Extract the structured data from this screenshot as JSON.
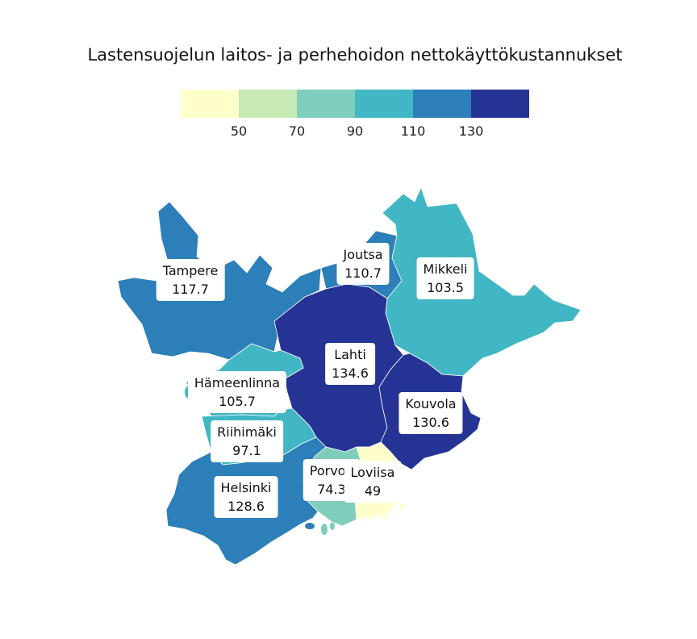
{
  "title": "Lastensuojelun laitos- ja perhehoidon nettokäyttökustannukset",
  "legend": {
    "colors": [
      "#ffffcc",
      "#c7e9b4",
      "#7fcdbb",
      "#41b6c4",
      "#2c7fb8",
      "#253494"
    ],
    "ticks": [
      "50",
      "70",
      "90",
      "110",
      "130"
    ]
  },
  "regions": [
    {
      "name": "Tampere",
      "value": "117.7",
      "color": "#2c7fb8"
    },
    {
      "name": "Joutsa",
      "value": "110.7",
      "color": "#2c7fb8"
    },
    {
      "name": "Mikkeli",
      "value": "103.5",
      "color": "#41b6c4"
    },
    {
      "name": "Lahti",
      "value": "134.6",
      "color": "#253494"
    },
    {
      "name": "Hämeenlinna",
      "value": "105.7",
      "color": "#41b6c4"
    },
    {
      "name": "Kouvola",
      "value": "130.6",
      "color": "#253494"
    },
    {
      "name": "Riihimäki",
      "value": "97.1",
      "color": "#41b6c4"
    },
    {
      "name": "Porvoo",
      "value": "74.3",
      "color": "#7fcdbb"
    },
    {
      "name": "Loviisa",
      "value": "49",
      "color": "#ffffcc"
    },
    {
      "name": "Helsinki",
      "value": "128.6",
      "color": "#2c7fb8"
    }
  ]
}
